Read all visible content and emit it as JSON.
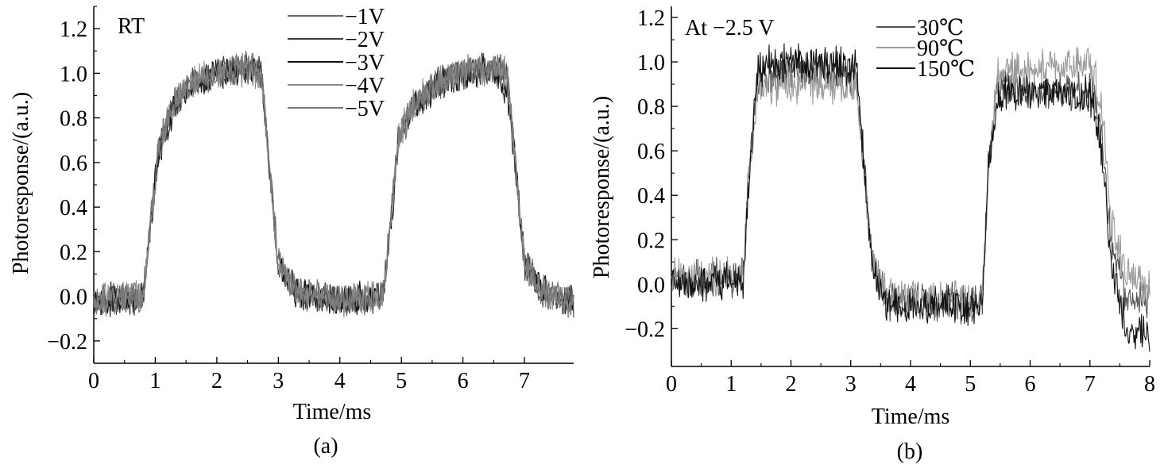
{
  "chart_data": [
    {
      "type": "line",
      "panel_label": "(a)",
      "annotation": "RT",
      "xlabel": "Time/ms",
      "ylabel": "Photoresponse/(a.u.)",
      "xlim": [
        0,
        7.8
      ],
      "ylim": [
        -0.3,
        1.3
      ],
      "xticks": [
        0,
        1,
        2,
        3,
        4,
        5,
        6,
        7
      ],
      "yticks": [
        -0.2,
        0.0,
        0.2,
        0.4,
        0.6,
        0.8,
        1.0,
        1.2
      ],
      "ytick_labels": [
        "−0.2",
        "0.0",
        "0.2",
        "0.4",
        "0.6",
        "0.8",
        "1.0",
        "1.2"
      ],
      "legend_position": "top-right",
      "series": [
        {
          "name": "−1V",
          "color": "#6a6a6a",
          "x": [
            0,
            0.8,
            0.88,
            1.05,
            1.3,
            1.6,
            2.0,
            2.5,
            2.72,
            2.85,
            3.0,
            3.3,
            4.0,
            4.7,
            4.8,
            4.95,
            5.2,
            5.6,
            6.0,
            6.5,
            6.72,
            6.85,
            7.0,
            7.3,
            7.8
          ],
          "y": [
            -0.02,
            0.0,
            0.2,
            0.65,
            0.85,
            0.95,
            1.0,
            1.02,
            1.0,
            0.6,
            0.15,
            0.02,
            -0.02,
            0.0,
            0.25,
            0.7,
            0.85,
            0.95,
            1.0,
            1.02,
            1.0,
            0.6,
            0.15,
            0.02,
            -0.03
          ]
        },
        {
          "name": "−2V",
          "color": "#3e3e3e",
          "x": [
            0,
            0.8,
            0.88,
            1.05,
            1.3,
            1.6,
            2.0,
            2.5,
            2.72,
            2.85,
            3.0,
            3.3,
            4.0,
            4.7,
            4.8,
            4.95,
            5.2,
            5.6,
            6.0,
            6.5,
            6.72,
            6.85,
            7.0,
            7.3,
            7.8
          ],
          "y": [
            -0.02,
            0.0,
            0.2,
            0.65,
            0.86,
            0.95,
            1.0,
            1.02,
            1.0,
            0.6,
            0.15,
            0.02,
            -0.02,
            0.0,
            0.25,
            0.7,
            0.86,
            0.96,
            1.0,
            1.02,
            1.0,
            0.6,
            0.15,
            0.02,
            -0.03
          ]
        },
        {
          "name": "−3V",
          "color": "#111111",
          "x": [
            0,
            0.8,
            0.88,
            1.05,
            1.3,
            1.6,
            2.0,
            2.5,
            2.72,
            2.85,
            3.0,
            3.3,
            4.0,
            4.7,
            4.8,
            4.95,
            5.2,
            5.6,
            6.0,
            6.5,
            6.72,
            6.85,
            7.0,
            7.3,
            7.8
          ],
          "y": [
            -0.02,
            0.0,
            0.2,
            0.64,
            0.85,
            0.95,
            1.0,
            1.02,
            1.0,
            0.6,
            0.15,
            0.02,
            -0.02,
            0.0,
            0.24,
            0.7,
            0.85,
            0.95,
            1.0,
            1.02,
            0.9,
            0.6,
            0.15,
            0.02,
            -0.03
          ]
        },
        {
          "name": "−4V",
          "color": "#8c8c8c",
          "x": [
            0,
            0.8,
            0.88,
            1.05,
            1.3,
            1.6,
            2.0,
            2.5,
            2.72,
            2.85,
            3.0,
            3.3,
            4.0,
            4.7,
            4.8,
            4.95,
            5.2,
            5.6,
            6.0,
            6.5,
            6.72,
            6.85,
            7.0,
            7.3,
            7.8
          ],
          "y": [
            -0.02,
            0.0,
            0.2,
            0.66,
            0.86,
            0.96,
            1.0,
            1.02,
            1.0,
            0.6,
            0.15,
            0.02,
            -0.02,
            0.0,
            0.25,
            0.71,
            0.86,
            0.96,
            1.0,
            1.02,
            1.0,
            0.6,
            0.15,
            0.02,
            -0.03
          ]
        },
        {
          "name": "−5V",
          "color": "#7a7a7a",
          "x": [
            0,
            0.8,
            0.88,
            1.05,
            1.3,
            1.6,
            2.0,
            2.5,
            2.72,
            2.85,
            3.0,
            3.3,
            4.0,
            4.7,
            4.8,
            4.95,
            5.2,
            5.6,
            6.0,
            6.5,
            6.72,
            6.85,
            7.0,
            7.3,
            7.8
          ],
          "y": [
            -0.02,
            0.0,
            0.21,
            0.66,
            0.86,
            0.96,
            1.0,
            1.03,
            1.0,
            0.6,
            0.15,
            0.02,
            -0.02,
            0.0,
            0.26,
            0.71,
            0.86,
            0.96,
            1.0,
            1.03,
            1.0,
            0.6,
            0.15,
            0.02,
            -0.03
          ]
        }
      ]
    },
    {
      "type": "line",
      "panel_label": "(b)",
      "annotation": "At −2.5 V",
      "xlabel": "Time/ms",
      "ylabel": "Photoresponse/(a.u.)",
      "xlim": [
        0,
        8
      ],
      "ylim": [
        -0.37,
        1.25
      ],
      "xticks": [
        0,
        1,
        2,
        3,
        4,
        5,
        6,
        7,
        8
      ],
      "yticks": [
        -0.2,
        0.0,
        0.2,
        0.4,
        0.6,
        0.8,
        1.0,
        1.2
      ],
      "ytick_labels": [
        "−0.2",
        "0.0",
        "0.2",
        "0.4",
        "0.6",
        "0.8",
        "1.0",
        "1.2"
      ],
      "legend_position": "top-right",
      "series": [
        {
          "name": "30℃",
          "color": "#555555",
          "x": [
            0,
            1.2,
            1.3,
            1.45,
            2.0,
            2.6,
            3.1,
            3.2,
            3.35,
            3.6,
            4.5,
            5.0,
            5.2,
            5.3,
            5.45,
            6.0,
            6.5,
            7.05,
            7.2,
            7.35,
            7.6,
            8.0
          ],
          "y": [
            0.02,
            0.03,
            0.5,
            0.92,
            0.96,
            0.95,
            0.94,
            0.6,
            0.1,
            -0.07,
            -0.08,
            -0.09,
            -0.08,
            0.5,
            0.88,
            0.88,
            0.87,
            0.86,
            0.7,
            0.2,
            -0.05,
            -0.07
          ]
        },
        {
          "name": "90℃",
          "color": "#9a9a9a",
          "x": [
            0,
            1.2,
            1.3,
            1.45,
            2.0,
            2.6,
            3.1,
            3.2,
            3.35,
            3.6,
            4.5,
            5.0,
            5.2,
            5.3,
            5.45,
            6.0,
            6.5,
            7.05,
            7.2,
            7.35,
            7.6,
            8.0
          ],
          "y": [
            0.03,
            0.04,
            0.5,
            0.88,
            0.9,
            0.9,
            0.89,
            0.6,
            0.12,
            -0.06,
            -0.07,
            -0.08,
            -0.07,
            0.5,
            0.95,
            0.97,
            0.98,
            0.99,
            0.8,
            0.3,
            0.05,
            0.0
          ]
        },
        {
          "name": "150℃",
          "color": "#111111",
          "x": [
            0,
            1.2,
            1.3,
            1.45,
            2.0,
            2.6,
            3.1,
            3.2,
            3.35,
            3.6,
            4.5,
            5.0,
            5.2,
            5.3,
            5.45,
            6.0,
            6.5,
            7.05,
            7.2,
            7.35,
            7.6,
            8.0
          ],
          "y": [
            0.0,
            0.01,
            0.5,
            0.97,
            1.0,
            0.99,
            0.97,
            0.6,
            0.08,
            -0.08,
            -0.09,
            -0.1,
            -0.09,
            0.5,
            0.85,
            0.86,
            0.85,
            0.84,
            0.6,
            0.1,
            -0.2,
            -0.23
          ]
        }
      ]
    }
  ]
}
